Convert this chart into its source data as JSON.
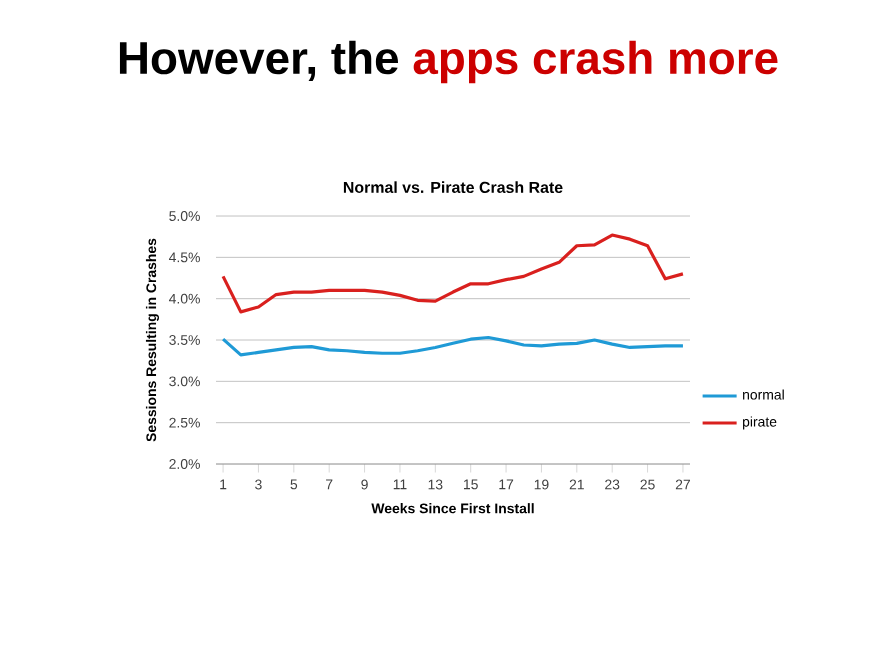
{
  "chart_data": {
    "type": "line",
    "title": "Normal vs. Pirate Crash Rate",
    "annotations": [
      "However, the",
      "apps crash more"
    ],
    "xlabel": "Weeks Since First Install",
    "ylabel": "Sessions Resulting in Crashes",
    "x": [
      1,
      2,
      3,
      4,
      5,
      6,
      7,
      8,
      9,
      10,
      11,
      12,
      13,
      14,
      15,
      16,
      17,
      18,
      19,
      20,
      21,
      22,
      23,
      24,
      25,
      26,
      27
    ],
    "xlim": [
      0.6,
      27.4
    ],
    "xticks": [
      1,
      3,
      5,
      7,
      9,
      11,
      13,
      15,
      17,
      19,
      21,
      23,
      25,
      27
    ],
    "ylim": [
      2.0,
      5.0
    ],
    "yticks": [
      {
        "value": 2.0,
        "label": "2.0%"
      },
      {
        "value": 2.5,
        "label": "2.5%"
      },
      {
        "value": 3.0,
        "label": "3.0%"
      },
      {
        "value": 3.5,
        "label": "3.5%"
      },
      {
        "value": 4.0,
        "label": "4.0%"
      },
      {
        "value": 4.5,
        "label": "4.5%"
      },
      {
        "value": 5.0,
        "label": "5.0%"
      }
    ],
    "grid": "y",
    "legend": "right",
    "marker": "none",
    "line_style": "solid",
    "series": [
      {
        "name": "normal",
        "color": "#1f9ad6",
        "values": [
          3.51,
          3.32,
          3.35,
          3.38,
          3.41,
          3.42,
          3.38,
          3.37,
          3.35,
          3.34,
          3.34,
          3.37,
          3.41,
          3.46,
          3.51,
          3.53,
          3.49,
          3.44,
          3.43,
          3.45,
          3.46,
          3.5,
          3.45,
          3.41,
          3.42,
          3.43,
          3.43
        ]
      },
      {
        "name": "pirate",
        "color": "#d9201e",
        "values": [
          4.27,
          3.84,
          3.9,
          4.05,
          4.08,
          4.08,
          4.1,
          4.1,
          4.1,
          4.08,
          4.04,
          3.98,
          3.97,
          4.08,
          4.18,
          4.18,
          4.23,
          4.27,
          4.36,
          4.44,
          4.64,
          4.65,
          4.77,
          4.72,
          4.64,
          4.24,
          4.3
        ]
      }
    ]
  }
}
